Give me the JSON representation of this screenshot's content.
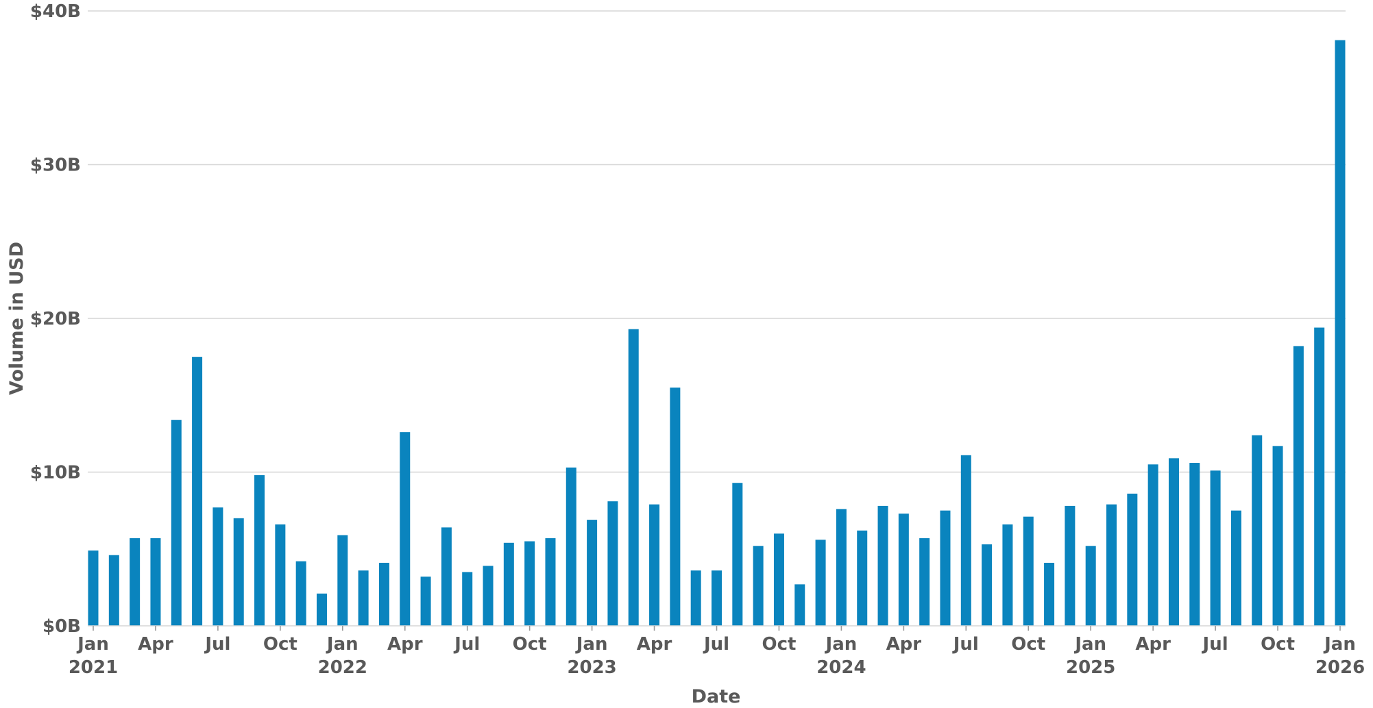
{
  "chart_data": {
    "type": "bar",
    "title": "",
    "xlabel": "Date",
    "ylabel": "Volume in USD",
    "ylim": [
      0,
      40
    ],
    "y_unit": "billion USD",
    "grid": true,
    "bar_color": "#0a84be",
    "y_ticks": [
      {
        "value": 0,
        "label": "$0B"
      },
      {
        "value": 10,
        "label": "$10B"
      },
      {
        "value": 20,
        "label": "$20B"
      },
      {
        "value": 30,
        "label": "$30B"
      },
      {
        "value": 40,
        "label": "$40B"
      }
    ],
    "x_ticks": [
      {
        "date": "2021-01",
        "line1": "Jan",
        "line2": "2021"
      },
      {
        "date": "2021-04",
        "line1": "Apr",
        "line2": ""
      },
      {
        "date": "2021-07",
        "line1": "Jul",
        "line2": ""
      },
      {
        "date": "2021-10",
        "line1": "Oct",
        "line2": ""
      },
      {
        "date": "2022-01",
        "line1": "Jan",
        "line2": "2022"
      },
      {
        "date": "2022-04",
        "line1": "Apr",
        "line2": ""
      },
      {
        "date": "2022-07",
        "line1": "Jul",
        "line2": ""
      },
      {
        "date": "2022-10",
        "line1": "Oct",
        "line2": ""
      },
      {
        "date": "2023-01",
        "line1": "Jan",
        "line2": "2023"
      },
      {
        "date": "2023-04",
        "line1": "Apr",
        "line2": ""
      },
      {
        "date": "2023-07",
        "line1": "Jul",
        "line2": ""
      },
      {
        "date": "2023-10",
        "line1": "Oct",
        "line2": ""
      },
      {
        "date": "2024-01",
        "line1": "Jan",
        "line2": "2024"
      },
      {
        "date": "2024-04",
        "line1": "Apr",
        "line2": ""
      },
      {
        "date": "2024-07",
        "line1": "Jul",
        "line2": ""
      },
      {
        "date": "2024-10",
        "line1": "Oct",
        "line2": ""
      },
      {
        "date": "2025-01",
        "line1": "Jan",
        "line2": "2025"
      },
      {
        "date": "2025-04",
        "line1": "Apr",
        "line2": ""
      },
      {
        "date": "2025-07",
        "line1": "Jul",
        "line2": ""
      },
      {
        "date": "2025-10",
        "line1": "Oct",
        "line2": ""
      },
      {
        "date": "2026-01",
        "line1": "Jan",
        "line2": "2026"
      }
    ],
    "x": [
      "2021-01",
      "2021-02",
      "2021-03",
      "2021-04",
      "2021-05",
      "2021-06",
      "2021-07",
      "2021-08",
      "2021-09",
      "2021-10",
      "2021-11",
      "2021-12",
      "2022-01",
      "2022-02",
      "2022-03",
      "2022-04",
      "2022-05",
      "2022-06",
      "2022-07",
      "2022-08",
      "2022-09",
      "2022-10",
      "2022-11",
      "2022-12",
      "2023-01",
      "2023-02",
      "2023-03",
      "2023-04",
      "2023-05",
      "2023-06",
      "2023-07",
      "2023-08",
      "2023-09",
      "2023-10",
      "2023-11",
      "2023-12",
      "2024-01",
      "2024-02",
      "2024-03",
      "2024-04",
      "2024-05",
      "2024-06",
      "2024-07",
      "2024-08",
      "2024-09",
      "2024-10",
      "2024-11",
      "2024-12",
      "2025-01",
      "2025-02",
      "2025-03",
      "2025-04",
      "2025-05",
      "2025-06",
      "2025-07",
      "2025-08",
      "2025-09",
      "2025-10",
      "2025-11",
      "2025-12",
      "2026-01"
    ],
    "values": [
      4.9,
      4.6,
      5.7,
      5.7,
      13.4,
      17.5,
      7.7,
      7.0,
      9.8,
      6.6,
      4.2,
      2.1,
      5.9,
      3.6,
      4.1,
      12.6,
      3.2,
      6.4,
      3.5,
      3.9,
      5.4,
      5.5,
      5.7,
      10.3,
      6.9,
      8.1,
      19.3,
      7.9,
      15.5,
      3.6,
      3.6,
      9.3,
      5.2,
      6.0,
      2.7,
      5.6,
      7.6,
      6.2,
      7.8,
      7.3,
      5.7,
      7.5,
      11.1,
      5.3,
      6.6,
      7.1,
      4.1,
      7.8,
      5.2,
      7.9,
      8.6,
      10.5,
      10.9,
      10.6,
      10.1,
      7.5,
      12.4,
      11.7,
      18.2,
      19.4,
      38.1
    ]
  }
}
